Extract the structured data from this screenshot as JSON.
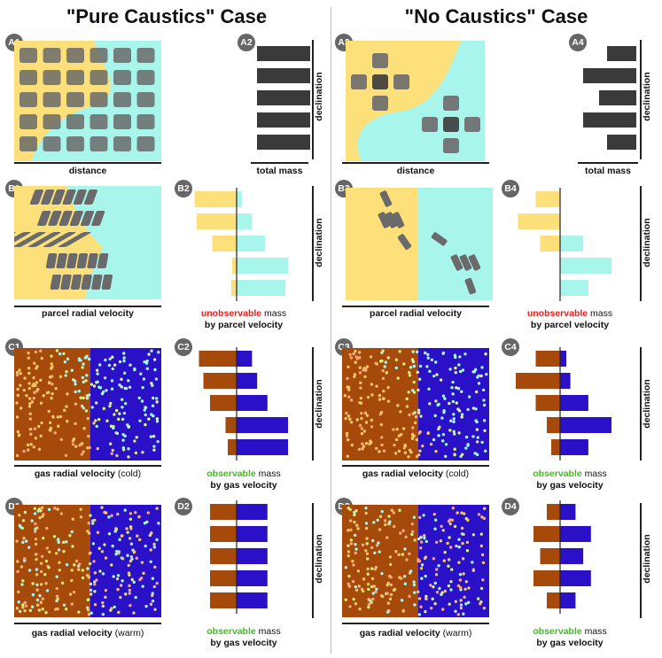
{
  "titles": {
    "left": "\"Pure Caustics\" Case",
    "right": "\"No Caustics\" Case"
  },
  "badges": [
    "A1",
    "A2",
    "A3",
    "A4",
    "B1",
    "B2",
    "B3",
    "B4",
    "C1",
    "C2",
    "C3",
    "C4",
    "D1",
    "D2",
    "D3",
    "D4"
  ],
  "labels": {
    "distance": "distance",
    "total_mass": "total mass",
    "declination": "declination",
    "parcel_velocity": "parcel radial velocity",
    "unobservable": "unobservable",
    "mass": " mass",
    "by_parcel": "by parcel velocity",
    "gas_velocity": "gas radial velocity",
    "cold": " (cold)",
    "warm": " (warm)",
    "observable": "observable",
    "by_gas": "by gas velocity"
  },
  "colors": {
    "yellow": "#fde07a",
    "cyan": "#a8f5ec",
    "brown": "#a54a0a",
    "blue": "#2a10c6",
    "dark": "#3a3a3a",
    "blob": "#6a6a6a"
  },
  "bars": {
    "A2": [
      1,
      1,
      1,
      1,
      1
    ],
    "A4": [
      0.55,
      1,
      0.7,
      1,
      0.55
    ],
    "B2_left": [
      0.95,
      0.9,
      0.55,
      0.1,
      0.12
    ],
    "B2_right": [
      0.1,
      0.3,
      0.55,
      1,
      0.95
    ],
    "B4_left": [
      0.55,
      0.95,
      0.45,
      0,
      0
    ],
    "B4_right": [
      0,
      0,
      0.45,
      1,
      0.55
    ],
    "C2_left": [
      0.85,
      0.75,
      0.6,
      0.25,
      0.2
    ],
    "C2_right": [
      0.3,
      0.4,
      0.6,
      1,
      1
    ],
    "C4_left": [
      0.55,
      1,
      0.55,
      0.3,
      0.2
    ],
    "C4_right": [
      0.12,
      0.2,
      0.55,
      1,
      0.55
    ],
    "D2_left": [
      0.6,
      0.6,
      0.6,
      0.6,
      0.6
    ],
    "D2_right": [
      0.6,
      0.6,
      0.6,
      0.6,
      0.6
    ],
    "D4_left": [
      0.3,
      0.6,
      0.45,
      0.6,
      0.3
    ],
    "D4_right": [
      0.3,
      0.6,
      0.45,
      0.6,
      0.3
    ]
  }
}
